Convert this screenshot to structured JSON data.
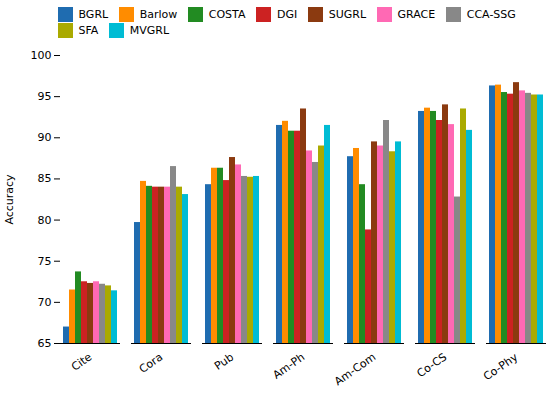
{
  "chart_data": {
    "type": "bar",
    "categories": [
      "Cite",
      "Cora",
      "Pub",
      "Am-Ph",
      "Am-Com",
      "Co-CS",
      "Co-Phy"
    ],
    "series": [
      {
        "name": "BGRL",
        "color": "#1f6cb0",
        "values": [
          67.0,
          79.7,
          84.3,
          91.5,
          87.7,
          93.2,
          96.3
        ]
      },
      {
        "name": "Barlow",
        "color": "#ff8c00",
        "values": [
          71.5,
          84.7,
          86.3,
          92.0,
          88.7,
          93.6,
          96.4
        ]
      },
      {
        "name": "COSTA",
        "color": "#228b22",
        "values": [
          73.7,
          84.1,
          86.3,
          90.8,
          84.3,
          93.2,
          95.5
        ]
      },
      {
        "name": "DGI",
        "color": "#cc2222",
        "values": [
          72.5,
          84.0,
          84.8,
          90.8,
          78.8,
          92.1,
          95.3
        ]
      },
      {
        "name": "SUGRL",
        "color": "#8b3a10",
        "values": [
          72.3,
          84.0,
          87.6,
          93.5,
          89.5,
          94.0,
          96.7
        ]
      },
      {
        "name": "GRACE",
        "color": "#ff69b4",
        "values": [
          72.5,
          84.0,
          86.7,
          88.4,
          89.0,
          91.6,
          95.7
        ]
      },
      {
        "name": "CCA-SSG",
        "color": "#888888",
        "values": [
          72.2,
          86.5,
          85.3,
          87.0,
          92.1,
          82.8,
          95.4
        ]
      },
      {
        "name": "SFA",
        "color": "#aaaa00",
        "values": [
          72.0,
          84.0,
          85.2,
          89.0,
          88.3,
          93.5,
          95.2
        ]
      },
      {
        "name": "MVGRL",
        "color": "#00bcd4",
        "values": [
          71.4,
          83.1,
          85.3,
          91.5,
          89.5,
          90.9,
          95.2
        ]
      }
    ],
    "ylabel": "Accuracy",
    "ylim": [
      65,
      100
    ],
    "yticks": [
      65,
      70,
      75,
      80,
      85,
      90,
      95,
      100
    ],
    "grid": false,
    "legend": "upper left"
  }
}
